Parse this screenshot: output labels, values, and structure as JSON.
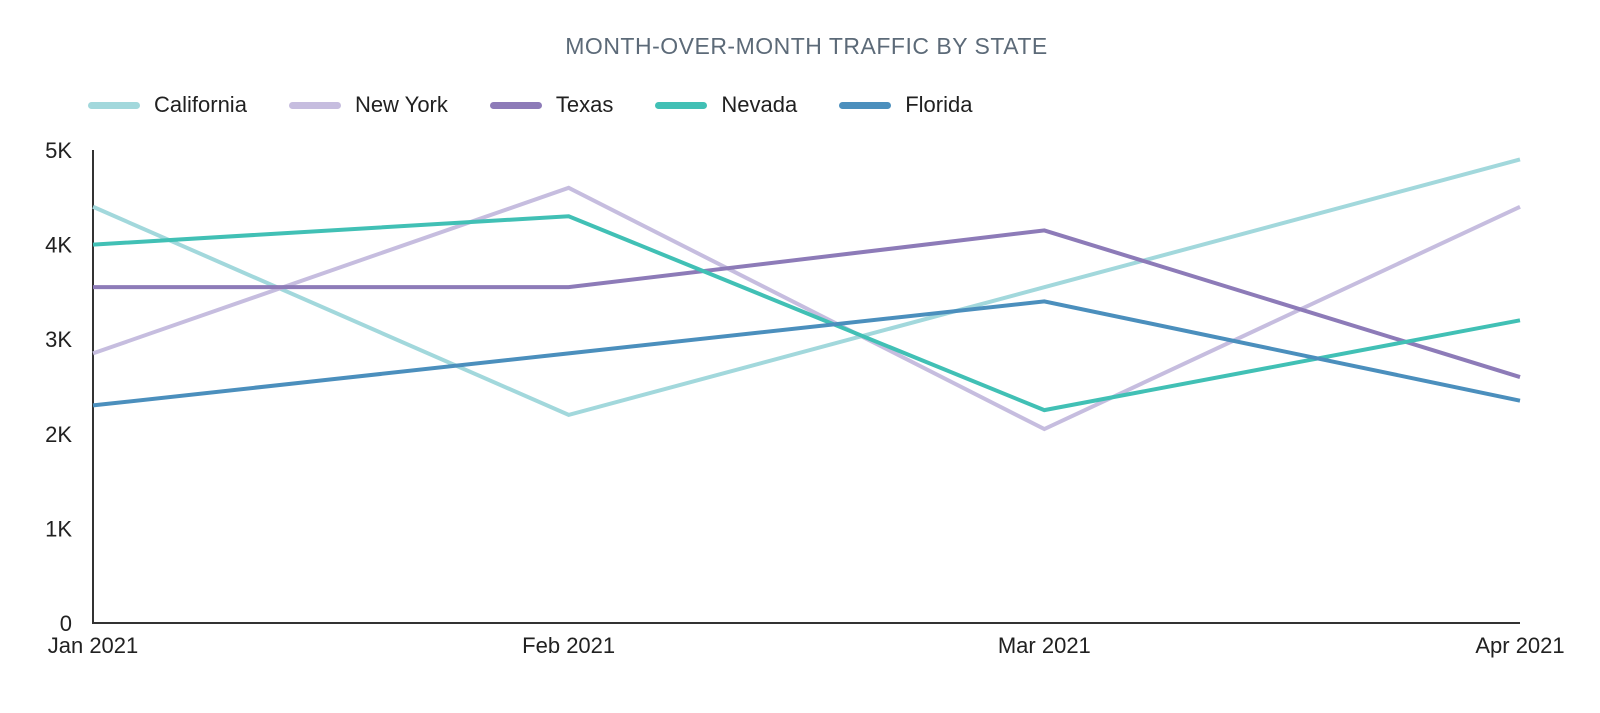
{
  "chart_data": {
    "type": "line",
    "title": "MONTH-OVER-MONTH TRAFFIC BY STATE",
    "categories": [
      "Jan 2021",
      "Feb 2021",
      "Mar 2021",
      "Apr 2021"
    ],
    "series": [
      {
        "name": "California",
        "color": "#a2d8dc",
        "values": [
          4400,
          2200,
          3550,
          4900
        ]
      },
      {
        "name": "New York",
        "color": "#c6bddf",
        "values": [
          2850,
          4600,
          2050,
          4400
        ]
      },
      {
        "name": "Texas",
        "color": "#8d7bb8",
        "values": [
          3550,
          3550,
          4150,
          2600
        ]
      },
      {
        "name": "Nevada",
        "color": "#41c0b5",
        "values": [
          4000,
          4300,
          2250,
          3200
        ]
      },
      {
        "name": "Florida",
        "color": "#4b8fbd",
        "values": [
          2300,
          2850,
          3400,
          2350
        ]
      }
    ],
    "y_axis": {
      "min": 0,
      "max": 5000,
      "ticks": [
        {
          "value": 0,
          "label": "0"
        },
        {
          "value": 1000,
          "label": "1K"
        },
        {
          "value": 2000,
          "label": "2K"
        },
        {
          "value": 3000,
          "label": "3K"
        },
        {
          "value": 4000,
          "label": "4K"
        },
        {
          "value": 5000,
          "label": "5K"
        }
      ]
    },
    "legend_position": "top-left",
    "grid": false,
    "line_width": 4,
    "colors": {
      "title_text": "#5c6a78",
      "axis_text": "#212121",
      "axis_line": "#333333",
      "background": "#ffffff"
    }
  }
}
